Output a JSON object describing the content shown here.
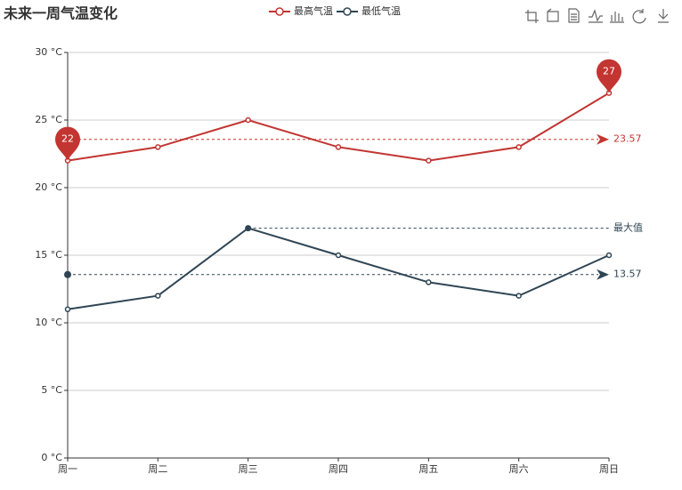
{
  "chart_data": {
    "type": "line",
    "title": "未来一周气温变化",
    "categories": [
      "周一",
      "周二",
      "周三",
      "周四",
      "周五",
      "周六",
      "周日"
    ],
    "series": [
      {
        "name": "最高气温",
        "color": "#c23531",
        "values": [
          22,
          23,
          25,
          23,
          22,
          23,
          27
        ],
        "average": 23.57
      },
      {
        "name": "最低气温",
        "color": "#2f4554",
        "values": [
          11,
          12,
          17,
          15,
          13,
          12,
          15
        ],
        "average": 13.57,
        "max_line_label": "最大值"
      }
    ],
    "ylim": [
      0,
      30
    ],
    "yticks": [
      {
        "value": 0,
        "label": "0 °C"
      },
      {
        "value": 5,
        "label": "5 °C"
      },
      {
        "value": 10,
        "label": "10 °C"
      },
      {
        "value": 15,
        "label": "15 °C"
      },
      {
        "value": 20,
        "label": "20 °C"
      },
      {
        "value": 25,
        "label": "25 °C"
      },
      {
        "value": 30,
        "label": "30 °C"
      }
    ],
    "grid": true
  }
}
